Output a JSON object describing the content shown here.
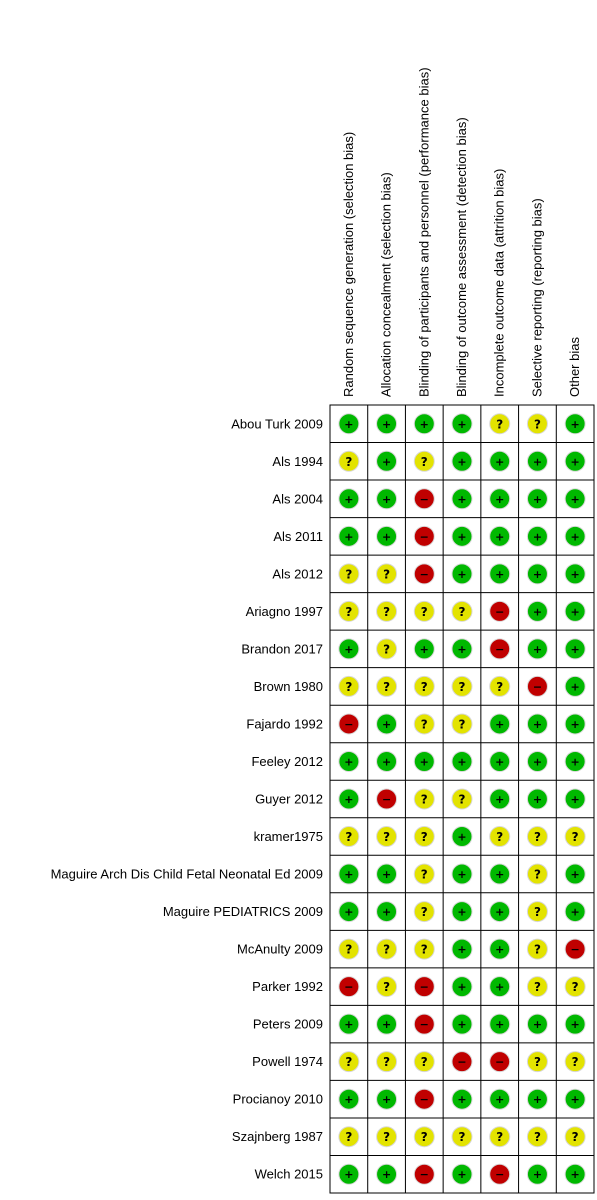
{
  "chart_data": {
    "type": "table",
    "columns": [
      "Random sequence generation (selection bias)",
      "Allocation concealment (selection bias)",
      "Blinding of participants and personnel (performance bias)",
      "Blinding of outcome assessment (detection bias)",
      "Incomplete outcome data (attrition bias)",
      "Selective reporting (reporting bias)",
      "Other bias"
    ],
    "rows": [
      {
        "study": "Abou Turk 2009",
        "ratings": [
          "+",
          "+",
          "+",
          "+",
          "?",
          "?",
          "+"
        ]
      },
      {
        "study": "Als 1994",
        "ratings": [
          "?",
          "+",
          "?",
          "+",
          "+",
          "+",
          "+"
        ]
      },
      {
        "study": "Als 2004",
        "ratings": [
          "+",
          "+",
          "-",
          "+",
          "+",
          "+",
          "+"
        ]
      },
      {
        "study": "Als 2011",
        "ratings": [
          "+",
          "+",
          "-",
          "+",
          "+",
          "+",
          "+"
        ]
      },
      {
        "study": "Als 2012",
        "ratings": [
          "?",
          "?",
          "-",
          "+",
          "+",
          "+",
          "+"
        ]
      },
      {
        "study": "Ariagno 1997",
        "ratings": [
          "?",
          "?",
          "?",
          "?",
          "-",
          "+",
          "+"
        ]
      },
      {
        "study": "Brandon 2017",
        "ratings": [
          "+",
          "?",
          "+",
          "+",
          "-",
          "+",
          "+"
        ]
      },
      {
        "study": "Brown 1980",
        "ratings": [
          "?",
          "?",
          "?",
          "?",
          "?",
          "-",
          "+"
        ]
      },
      {
        "study": "Fajardo 1992",
        "ratings": [
          "-",
          "+",
          "?",
          "?",
          "+",
          "+",
          "+"
        ]
      },
      {
        "study": "Feeley 2012",
        "ratings": [
          "+",
          "+",
          "+",
          "+",
          "+",
          "+",
          "+"
        ]
      },
      {
        "study": "Guyer 2012",
        "ratings": [
          "+",
          "-",
          "?",
          "?",
          "+",
          "+",
          "+"
        ]
      },
      {
        "study": "kramer1975",
        "ratings": [
          "?",
          "?",
          "?",
          "+",
          "?",
          "?",
          "?"
        ]
      },
      {
        "study": "Maguire Arch Dis Child Fetal Neonatal Ed 2009",
        "ratings": [
          "+",
          "+",
          "?",
          "+",
          "+",
          "?",
          "+"
        ]
      },
      {
        "study": "Maguire  PEDIATRICS 2009",
        "ratings": [
          "+",
          "+",
          "?",
          "+",
          "+",
          "?",
          "+"
        ]
      },
      {
        "study": "McAnulty 2009",
        "ratings": [
          "?",
          "?",
          "?",
          "+",
          "+",
          "?",
          "-"
        ]
      },
      {
        "study": "Parker 1992",
        "ratings": [
          "-",
          "?",
          "-",
          "+",
          "+",
          "?",
          "?"
        ]
      },
      {
        "study": "Peters 2009",
        "ratings": [
          "+",
          "+",
          "-",
          "+",
          "+",
          "+",
          "+"
        ]
      },
      {
        "study": "Powell 1974",
        "ratings": [
          "?",
          "?",
          "?",
          "-",
          "-",
          "?",
          "?"
        ]
      },
      {
        "study": "Procianoy 2010",
        "ratings": [
          "+",
          "+",
          "-",
          "+",
          "+",
          "+",
          "+"
        ]
      },
      {
        "study": "Szajnberg 1987",
        "ratings": [
          "?",
          "?",
          "?",
          "?",
          "?",
          "?",
          "?"
        ]
      },
      {
        "study": "Welch 2015",
        "ratings": [
          "+",
          "+",
          "-",
          "+",
          "-",
          "+",
          "+"
        ]
      }
    ],
    "legend": {
      "+": {
        "label": "+",
        "color": "#00b800"
      },
      "?": {
        "label": "?",
        "color": "#e3e300"
      },
      "-": {
        "label": "−",
        "color": "#c00000"
      }
    }
  }
}
